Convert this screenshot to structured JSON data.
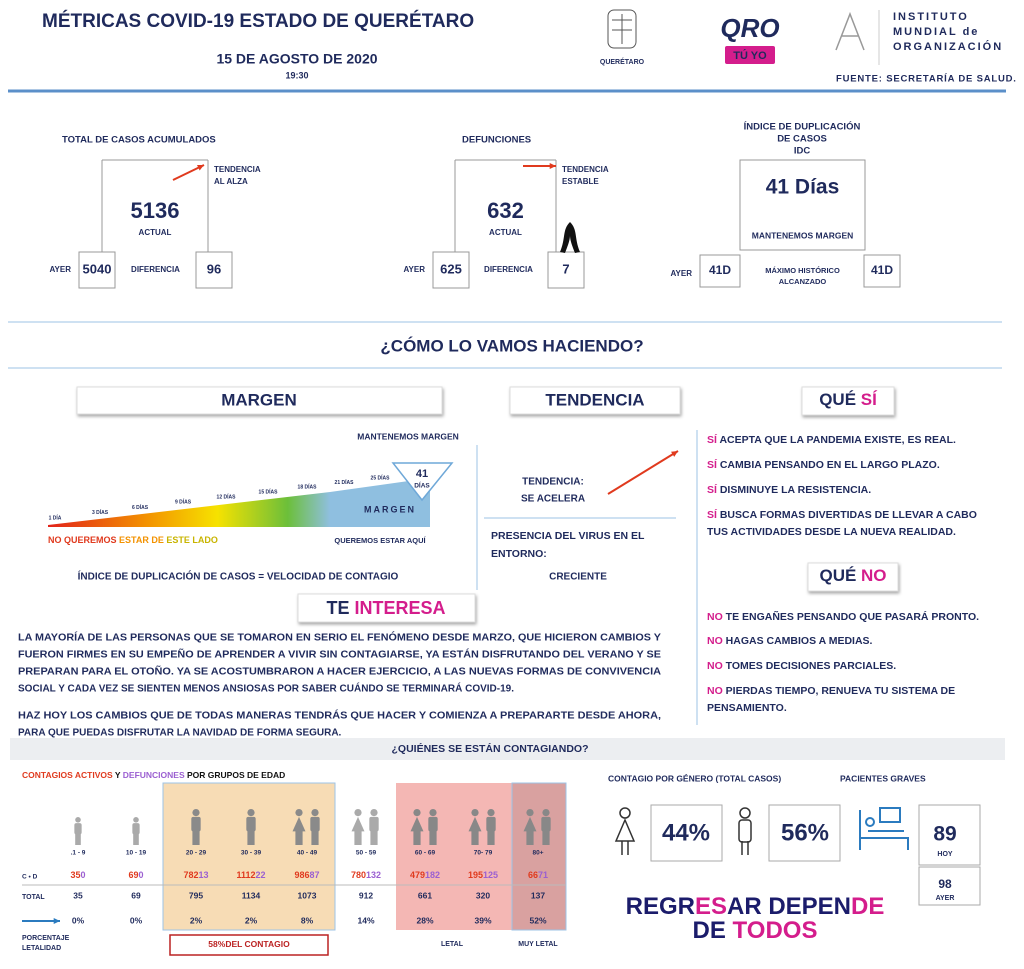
{
  "header": {
    "title": "MÉTRICAS COVID-19 ESTADO DE QUERÉTARO",
    "date": "15 DE AGOSTO DE 2020",
    "time": "19:30",
    "logo_left": "QUERÉTARO",
    "logo_oro": "QRO",
    "logo_tuyo": "TÚ YO",
    "institute": [
      "INSTITUTO",
      "MUNDIAL de",
      "ORGANIZACIÓN"
    ],
    "source": "FUENTE: SECRETARÍA DE SALUD."
  },
  "metrics": [
    {
      "title": [
        "TOTAL DE CASOS ACUMULADOS"
      ],
      "value": 5136,
      "value_label": "ACTUAL",
      "trend_label": "TENDENCIA",
      "trend": "AL ALZA",
      "yesterday_label": "AYER",
      "yesterday": 5040,
      "diff_label": "DIFERENCIA",
      "diff": 96
    },
    {
      "title": [
        "DEFUNCIONES"
      ],
      "value": 632,
      "value_label": "ACTUAL",
      "trend_label": "TENDENCIA",
      "trend": "ESTABLE",
      "yesterday_label": "AYER",
      "yesterday": 625,
      "diff_label": "DIFERENCIA",
      "diff": 7
    },
    {
      "title": [
        "ÍNDICE DE DUPLICACIÓN",
        "DE CASOS",
        "IDC"
      ],
      "value": "41 Días",
      "value_label": "MANTENEMOS MARGEN",
      "yesterday_label": "AYER",
      "yesterday": "41D",
      "diff_label": [
        "MÁXIMO HISTÓRICO",
        "ALCANZADO"
      ],
      "diff": "41D"
    }
  ],
  "section_title": "¿CÓMO LO VAMOS HACIENDO?",
  "margin": {
    "title": "MARGEN",
    "status": "MANTENEMOS MARGEN",
    "scale": [
      "1 DÍA",
      "3 DÍAS",
      "6 DÍAS",
      "9 DÍAS",
      "12 DÍAS",
      "15 DÍAS",
      "18 DÍAS",
      "21 DÍAS",
      "25 DÍAS"
    ],
    "marker_value": 41,
    "marker_unit": "DÍAS",
    "bar_label": "MARGEN",
    "left_note": [
      "NO QUEREMOS ",
      "ESTAR DE ",
      "ESTE LADO"
    ],
    "right_note": "QUEREMOS ESTAR AQUÍ",
    "formula": "ÍNDICE DE DUPLICACIÓN DE CASOS = VELOCIDAD DE CONTAGIO"
  },
  "trend": {
    "title": "TENDENCIA",
    "label": "TENDENCIA:",
    "value": "SE ACELERA",
    "presence": [
      "PRESENCIA DEL VIRUS EN EL",
      "ENTORNO:"
    ],
    "presence_value": "CRECIENTE"
  },
  "yes": {
    "title": [
      "QUÉ ",
      "SÍ"
    ],
    "items": [
      [
        [
          "SÍ",
          " ACEPTA QUE LA PANDEMIA EXISTE, ES REAL."
        ]
      ],
      [
        [
          "SÍ",
          " CAMBIA PENSANDO EN EL LARGO PLAZO."
        ]
      ],
      [
        [
          "SÍ",
          " DISMINUYE LA RESISTENCIA."
        ]
      ],
      [
        [
          "SÍ",
          " BUSCA FORMAS DIVERTIDAS DE LLEVAR A CABO"
        ],
        [
          "",
          "TUS ACTIVIDADES DESDE LA NUEVA REALIDAD."
        ]
      ]
    ]
  },
  "no": {
    "title": [
      "QUÉ ",
      "NO"
    ],
    "items": [
      [
        [
          "NO",
          " TE ENGAÑES PENSANDO QUE PASARÁ PRONTO."
        ]
      ],
      [
        [
          "NO",
          " HAGAS CAMBIOS A MEDIAS."
        ]
      ],
      [
        [
          "NO",
          " TOMES DECISIONES PARCIALES."
        ]
      ],
      [
        [
          "NO",
          " PIERDAS TIEMPO, RENUEVA TU SISTEMA DE"
        ],
        [
          "",
          "PENSAMIENTO."
        ]
      ]
    ]
  },
  "interest": {
    "title": [
      "TE ",
      "INTERESA"
    ],
    "paragraphs": [
      [
        "LA MAYORÍA DE LAS PERSONAS QUE SE TOMARON EN SERIO EL FENÓMENO DESDE MARZO, QUE HICIERON CAMBIOS Y",
        "FUERON FIRMES EN SU EMPEÑO DE APRENDER A VIVIR SIN CONTAGIARSE, YA ESTÁN DISFRUTANDO DEL VERANO Y SE",
        "PREPARAN PARA EL OTOÑO. YA SE ACOSTUMBRARON A HACER EJERCICIO, A LAS NUEVAS FORMAS DE CONVIVENCIA",
        "SOCIAL Y CADA VEZ SE SIENTEN MENOS ANSIOSAS POR SABER CUÁNDO SE TERMINARÁ COVID-19."
      ],
      [
        "HAZ HOY LOS CAMBIOS QUE DE TODAS MANERAS TENDRÁS QUE HACER Y COMIENZA A PREPARARTE DESDE AHORA,",
        "PARA QUE PUEDAS DISFRUTAR LA NAVIDAD DE FORMA SEGURA."
      ]
    ]
  },
  "who": {
    "title": "¿QUIÉNES SE ESTÁN CONTAGIANDO?",
    "legend": [
      "CONTAGIOS ACTIVOS",
      " Y ",
      "DEFUNCIONES",
      " POR GRUPOS DE EDAD"
    ],
    "groups": [
      ".1 - 9",
      "10 - 19",
      "20 - 29",
      "30 - 39",
      "40 - 49",
      "50 - 59",
      "60 - 69",
      "70- 79",
      "80+"
    ],
    "active": [
      35,
      69,
      782,
      1112,
      986,
      780,
      479,
      195,
      66
    ],
    "deaths": [
      0,
      0,
      13,
      22,
      87,
      132,
      182,
      125,
      71
    ],
    "total": [
      35,
      69,
      795,
      1134,
      1073,
      912,
      661,
      320,
      137
    ],
    "lethality": [
      "0%",
      "0%",
      "2%",
      "2%",
      "8%",
      "14%",
      "28%",
      "39%",
      "52%"
    ],
    "row_labels": [
      "C • D",
      "TOTAL",
      "PORCENTAJE",
      "LETALIDAD"
    ],
    "footer": [
      "58%",
      "DEL CONTAGIO",
      "LETAL",
      "MUY LETAL"
    ]
  },
  "gender": {
    "title": "CONTAGIO POR GÉNERO (TOTAL CASOS)",
    "female": "44%",
    "male": "56%"
  },
  "patients": {
    "title": "PACIENTES GRAVES",
    "today": 89,
    "today_label": "HOY",
    "yesterday": 98,
    "yesterday_label": "AYER"
  },
  "slogan": [
    "REGR",
    "ES",
    "AR DEPEN",
    "DE",
    "DE ",
    "TODOS"
  ]
}
